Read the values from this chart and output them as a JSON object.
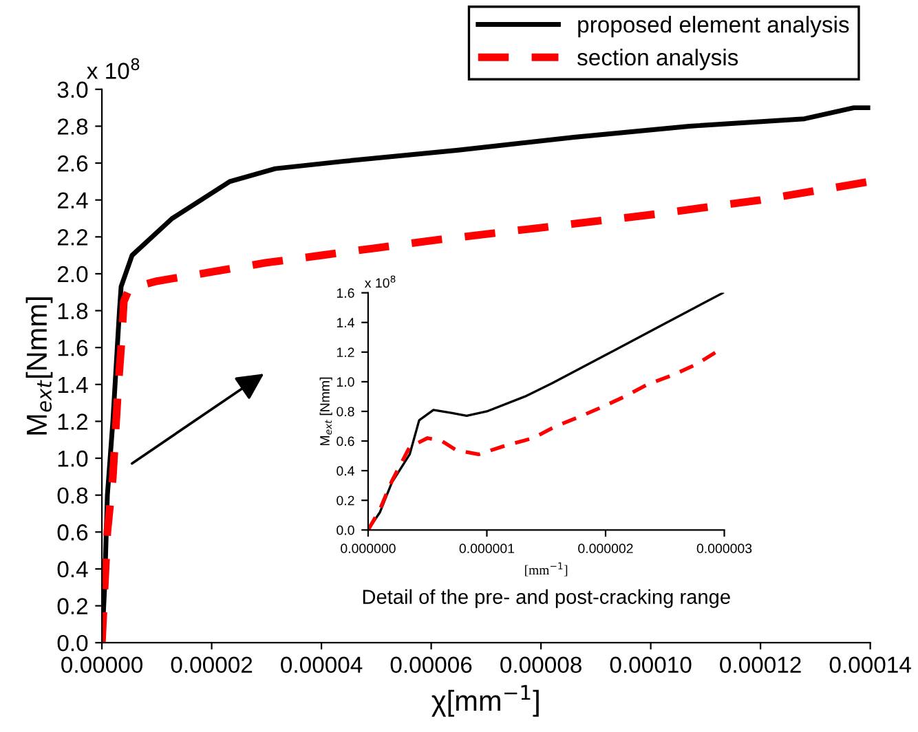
{
  "chart_data": [
    {
      "type": "line",
      "xlabel": "χ[mm$^{−1}$]",
      "ylabel": "M$_{ext}$[Nmm]",
      "annotations": [
        "x 10$^{8}$"
      ],
      "legend": "top right",
      "grid": false,
      "xlim": [
        0,
        0.00014
      ],
      "xticks": [
        {
          "value": 0,
          "label": "0.00000"
        },
        {
          "value": 2e-05,
          "label": "0.00002"
        },
        {
          "value": 4e-05,
          "label": "0.00004"
        },
        {
          "value": 6e-05,
          "label": "0.00006"
        },
        {
          "value": 8e-05,
          "label": "0.00008"
        },
        {
          "value": 0.0001,
          "label": "0.00010"
        },
        {
          "value": 0.00012,
          "label": "0.00012"
        },
        {
          "value": 0.00014,
          "label": "0.00014"
        }
      ],
      "ylim": [
        0,
        3.0
      ],
      "yticks": [
        {
          "value": 0,
          "label": "0.0"
        },
        {
          "value": 0.2,
          "label": "0.2"
        },
        {
          "value": 0.4,
          "label": "0.4"
        },
        {
          "value": 0.6,
          "label": "0.6"
        },
        {
          "value": 0.8,
          "label": "0.8"
        },
        {
          "value": 1.0,
          "label": "1.0"
        },
        {
          "value": 1.2,
          "label": "1.2"
        },
        {
          "value": 1.4,
          "label": "1.4"
        },
        {
          "value": 1.6,
          "label": "1.6"
        },
        {
          "value": 1.8,
          "label": "1.8"
        },
        {
          "value": 2.0,
          "label": "2.0"
        },
        {
          "value": 2.2,
          "label": "2.2"
        },
        {
          "value": 2.4,
          "label": "2.4"
        },
        {
          "value": 2.6,
          "label": "2.6"
        },
        {
          "value": 2.8,
          "label": "2.8"
        },
        {
          "value": 3.0,
          "label": "3.0"
        }
      ],
      "series": [
        {
          "name": "proposed element analysis",
          "color": "#000000",
          "line_style": "solid",
          "x": [
            0,
            5e-07,
            1e-06,
            2e-06,
            2.8e-06,
            3.2e-06,
            3.5e-06,
            5.5e-06,
            1.28e-05,
            2.33e-05,
            3.16e-05,
            4.41e-05,
            6.49e-05,
            8.6e-05,
            0.000107,
            0.000128,
            0.000137,
            0.00014
          ],
          "values": [
            0,
            0.3,
            0.8,
            1.2,
            1.6,
            1.8,
            1.93,
            2.1,
            2.3,
            2.5,
            2.57,
            2.61,
            2.67,
            2.74,
            2.8,
            2.84,
            2.9,
            2.9
          ]
        },
        {
          "name": "section analysis",
          "color": "#ff0000",
          "line_style": "dashed",
          "x": [
            0,
            1e-06,
            2e-06,
            3e-06,
            3.5e-06,
            4e-06,
            5e-06,
            1e-05,
            2e-05,
            3e-05,
            4e-05,
            5e-05,
            6e-05,
            8e-05,
            0.0001,
            0.00012,
            0.00014
          ],
          "values": [
            0,
            0.6,
            0.9,
            1.4,
            1.6,
            1.85,
            1.92,
            1.96,
            2.01,
            2.06,
            2.1,
            2.14,
            2.18,
            2.25,
            2.32,
            2.4,
            2.5
          ]
        }
      ]
    },
    {
      "type": "line",
      "xlabel": "[mm$^{−1}$]",
      "ylabel": "M$_{ext}$ [Nmm]",
      "annotations": [
        "x 10$^{8}$",
        "Detail of the pre- and post-cracking range"
      ],
      "grid": false,
      "xlim": [
        0,
        3e-06
      ],
      "xticks": [
        {
          "value": 0,
          "label": "0.000000"
        },
        {
          "value": 1e-06,
          "label": "0.000001"
        },
        {
          "value": 2e-06,
          "label": "0.000002"
        },
        {
          "value": 3e-06,
          "label": "0.000003"
        }
      ],
      "ylim": [
        0,
        1.6
      ],
      "yticks": [
        {
          "value": 0,
          "label": "0.0"
        },
        {
          "value": 0.2,
          "label": "0.2"
        },
        {
          "value": 0.4,
          "label": "0.4"
        },
        {
          "value": 0.6,
          "label": "0.6"
        },
        {
          "value": 0.8,
          "label": "0.8"
        },
        {
          "value": 1.0,
          "label": "1.0"
        },
        {
          "value": 1.2,
          "label": "1.2"
        },
        {
          "value": 1.4,
          "label": "1.4"
        },
        {
          "value": 1.6,
          "label": "1.6"
        }
      ],
      "series": [
        {
          "color": "#000000",
          "line_style": "solid",
          "x": [
            0,
            1e-07,
            2e-07,
            3.5e-07,
            4.3e-07,
            5.5e-07,
            7e-07,
            8.3e-07,
            1e-06,
            1.32e-06,
            1.55e-06,
            2e-06,
            2.47e-06,
            2.99e-06
          ],
          "values": [
            0,
            0.12,
            0.32,
            0.51,
            0.74,
            0.81,
            0.79,
            0.77,
            0.8,
            0.9,
            0.99,
            1.18,
            1.38,
            1.6
          ]
        },
        {
          "color": "#ff0000",
          "line_style": "dashed",
          "x": [
            0,
            1e-07,
            2e-07,
            3.5e-07,
            5e-07,
            6.2e-07,
            7.4e-07,
            9.3e-07,
            1.16e-06,
            1.39e-06,
            1.58e-06,
            1.77e-06,
            2e-06,
            2.16e-06,
            2.35e-06,
            2.58e-06,
            2.77e-06,
            2.97e-06
          ],
          "values": [
            0,
            0.14,
            0.33,
            0.56,
            0.62,
            0.6,
            0.54,
            0.51,
            0.57,
            0.62,
            0.7,
            0.76,
            0.84,
            0.9,
            0.98,
            1.05,
            1.12,
            1.22
          ]
        }
      ]
    }
  ]
}
